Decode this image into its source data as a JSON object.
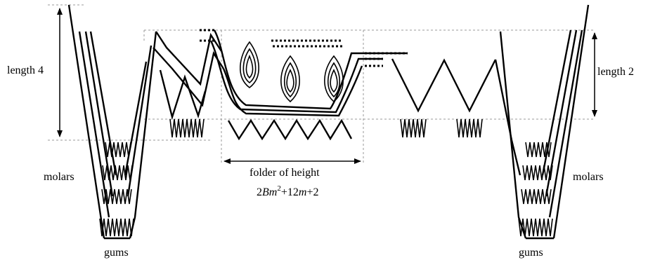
{
  "labels": {
    "length4": "length 4",
    "length2": "length 2",
    "molars_left": "molars",
    "molars_right": "molars",
    "gums_left": "gums",
    "gums_right": "gums",
    "folder_line1": "folder of height",
    "folder_formula": {
      "prefix": "2",
      "var_b": "B",
      "var_m": "m",
      "exp": "2",
      "rest": "+12",
      "var_m2": "m",
      "tail": "+2"
    }
  }
}
